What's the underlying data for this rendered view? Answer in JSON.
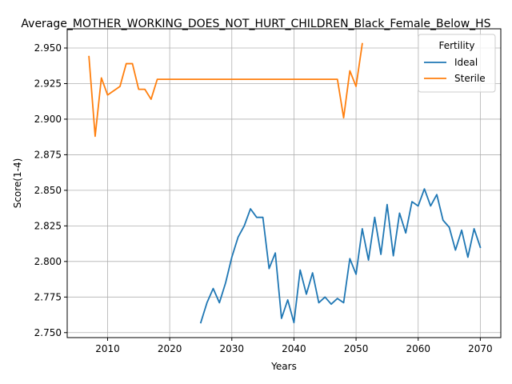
{
  "chart_data": {
    "type": "line",
    "title": "Average_MOTHER_WORKING_DOES_NOT_HURT_CHILDREN_Black_Female_Below_HS",
    "xlabel": "Years",
    "ylabel": "Score(1-4)",
    "xlim": [
      2003.5,
      2073.3
    ],
    "ylim": [
      2.7465,
      2.9635
    ],
    "xticks": [
      2010,
      2020,
      2030,
      2040,
      2050,
      2060,
      2070
    ],
    "xtick_labels": [
      "2010",
      "2020",
      "2030",
      "2040",
      "2050",
      "2060",
      "2070"
    ],
    "yticks": [
      2.75,
      2.775,
      2.8,
      2.825,
      2.85,
      2.875,
      2.9,
      2.925,
      2.95
    ],
    "ytick_labels": [
      "2.750",
      "2.775",
      "2.800",
      "2.825",
      "2.850",
      "2.875",
      "2.900",
      "2.925",
      "2.950"
    ],
    "grid": true,
    "legend": {
      "title": "Fertility",
      "position": "top-right"
    },
    "series": [
      {
        "name": "Ideal",
        "color": "#1f77b4",
        "x": [
          2025,
          2026,
          2027,
          2028,
          2029,
          2030,
          2031,
          2032,
          2033,
          2034,
          2035,
          2036,
          2037,
          2038,
          2039,
          2040,
          2041,
          2042,
          2043,
          2044,
          2045,
          2046,
          2047,
          2048,
          2049,
          2050,
          2051,
          2052,
          2053,
          2054,
          2055,
          2056,
          2057,
          2058,
          2059,
          2060,
          2061,
          2062,
          2063,
          2064,
          2065,
          2066,
          2067,
          2068,
          2069,
          2070
        ],
        "y": [
          2.757,
          2.771,
          2.781,
          2.771,
          2.785,
          2.803,
          2.817,
          2.825,
          2.837,
          2.831,
          2.831,
          2.795,
          2.806,
          2.76,
          2.773,
          2.757,
          2.794,
          2.777,
          2.792,
          2.771,
          2.775,
          2.77,
          2.774,
          2.771,
          2.802,
          2.791,
          2.823,
          2.801,
          2.831,
          2.805,
          2.84,
          2.804,
          2.834,
          2.82,
          2.842,
          2.839,
          2.851,
          2.839,
          2.847,
          2.829,
          2.824,
          2.808,
          2.822,
          2.803,
          2.823,
          2.81
        ]
      },
      {
        "name": "Sterile",
        "color": "#ff7f0e",
        "x": [
          2007,
          2008,
          2009,
          2010,
          2011,
          2012,
          2013,
          2014,
          2015,
          2016,
          2017,
          2018,
          2019,
          2020,
          2021,
          2022,
          2023,
          2024,
          2025,
          2026,
          2027,
          2028,
          2029,
          2030,
          2031,
          2032,
          2033,
          2034,
          2035,
          2036,
          2037,
          2038,
          2039,
          2040,
          2041,
          2042,
          2043,
          2044,
          2045,
          2046,
          2047,
          2048,
          2049,
          2050,
          2051
        ],
        "y": [
          2.944,
          2.888,
          2.929,
          2.917,
          2.92,
          2.923,
          2.939,
          2.939,
          2.921,
          2.921,
          2.914,
          2.928,
          2.928,
          2.928,
          2.928,
          2.928,
          2.928,
          2.928,
          2.928,
          2.928,
          2.928,
          2.928,
          2.928,
          2.928,
          2.928,
          2.928,
          2.928,
          2.928,
          2.928,
          2.928,
          2.928,
          2.928,
          2.928,
          2.928,
          2.928,
          2.928,
          2.928,
          2.928,
          2.928,
          2.928,
          2.928,
          2.901,
          2.934,
          2.923,
          2.953
        ]
      }
    ]
  }
}
